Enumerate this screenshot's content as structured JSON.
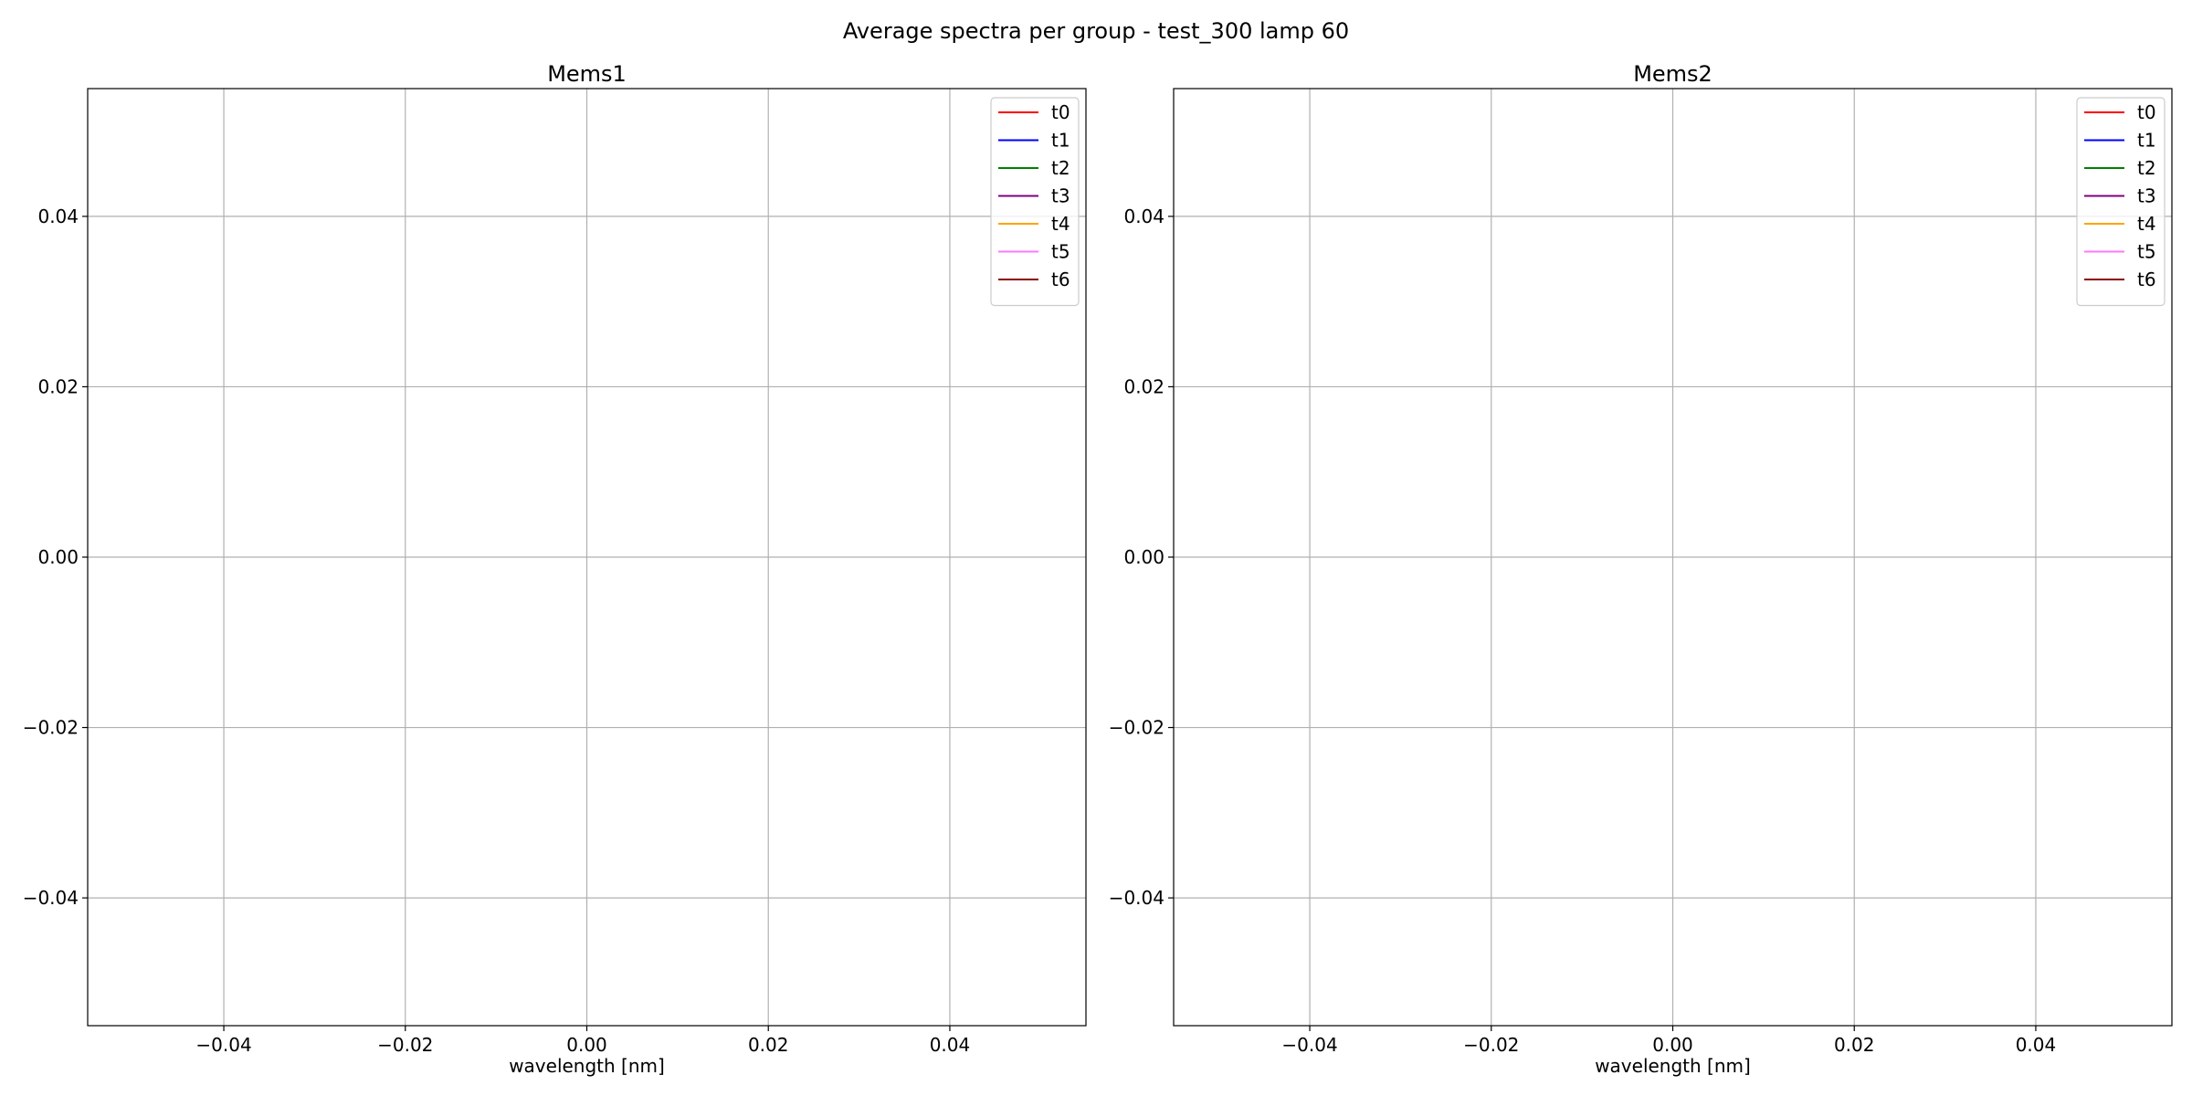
{
  "suptitle": "Average spectra per group - test_300 lamp 60",
  "chart_data": [
    {
      "type": "line",
      "title": "Mems1",
      "xlabel": "wavelength [nm]",
      "ylabel": "",
      "xlim": [
        -0.055,
        0.055
      ],
      "ylim": [
        -0.055,
        0.055
      ],
      "xticks": [
        -0.04,
        -0.02,
        0.0,
        0.02,
        0.04
      ],
      "xtick_labels": [
        "−0.04",
        "−0.02",
        "0.00",
        "0.02",
        "0.04"
      ],
      "yticks": [
        0.04,
        0.02,
        0.0,
        -0.02,
        -0.04
      ],
      "ytick_labels": [
        "0.04",
        "0.02",
        "0.00",
        "−0.02",
        "−0.04"
      ],
      "grid": true,
      "legend_position": "top-right",
      "series": [
        {
          "name": "t0",
          "color": "#ff0000",
          "x": [],
          "y": []
        },
        {
          "name": "t1",
          "color": "#0000ff",
          "x": [],
          "y": []
        },
        {
          "name": "t2",
          "color": "#008000",
          "x": [],
          "y": []
        },
        {
          "name": "t3",
          "color": "#800080",
          "x": [],
          "y": []
        },
        {
          "name": "t4",
          "color": "#ffa500",
          "x": [],
          "y": []
        },
        {
          "name": "t5",
          "color": "#ff77ff",
          "x": [],
          "y": []
        },
        {
          "name": "t6",
          "color": "#8b0000",
          "x": [],
          "y": []
        }
      ]
    },
    {
      "type": "line",
      "title": "Mems2",
      "xlabel": "wavelength [nm]",
      "ylabel": "",
      "xlim": [
        -0.055,
        0.055
      ],
      "ylim": [
        -0.055,
        0.055
      ],
      "xticks": [
        -0.04,
        -0.02,
        0.0,
        0.02,
        0.04
      ],
      "xtick_labels": [
        "−0.04",
        "−0.02",
        "0.00",
        "0.02",
        "0.04"
      ],
      "yticks": [
        0.04,
        0.02,
        0.0,
        -0.02,
        -0.04
      ],
      "ytick_labels": [
        "0.04",
        "0.02",
        "0.00",
        "−0.02",
        "−0.04"
      ],
      "grid": true,
      "legend_position": "top-right",
      "series": [
        {
          "name": "t0",
          "color": "#ff0000",
          "x": [],
          "y": []
        },
        {
          "name": "t1",
          "color": "#0000ff",
          "x": [],
          "y": []
        },
        {
          "name": "t2",
          "color": "#008000",
          "x": [],
          "y": []
        },
        {
          "name": "t3",
          "color": "#800080",
          "x": [],
          "y": []
        },
        {
          "name": "t4",
          "color": "#ffa500",
          "x": [],
          "y": []
        },
        {
          "name": "t5",
          "color": "#ff77ff",
          "x": [],
          "y": []
        },
        {
          "name": "t6",
          "color": "#8b0000",
          "x": [],
          "y": []
        }
      ]
    }
  ]
}
